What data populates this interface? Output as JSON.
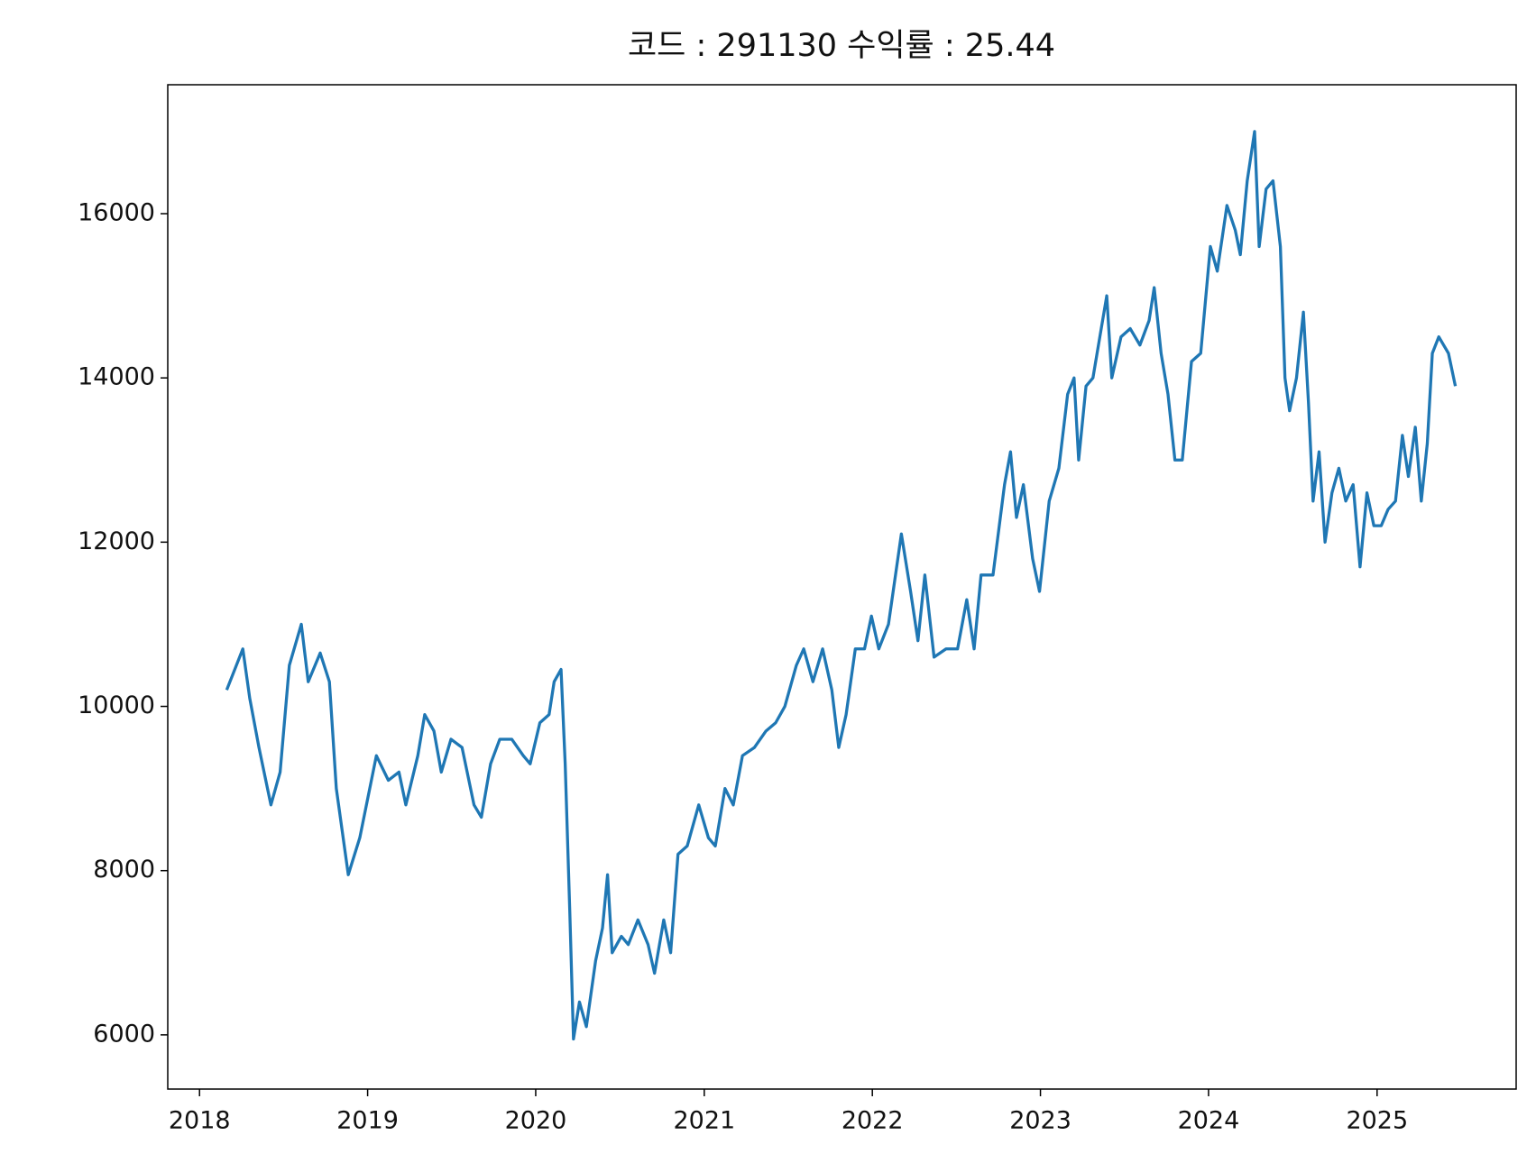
{
  "chart_data": {
    "type": "line",
    "title": "코드 : 291130 수익률 : 25.44",
    "color": "#1f77b4",
    "x": [
      "2018-03-01",
      "2018-04-05",
      "2018-04-20",
      "2018-05-10",
      "2018-06-05",
      "2018-06-25",
      "2018-07-15",
      "2018-08-10",
      "2018-08-25",
      "2018-09-20",
      "2018-10-10",
      "2018-10-25",
      "2018-11-20",
      "2018-12-15",
      "2019-01-20",
      "2019-02-15",
      "2019-03-10",
      "2019-03-25",
      "2019-04-20",
      "2019-05-05",
      "2019-05-25",
      "2019-06-10",
      "2019-07-01",
      "2019-07-25",
      "2019-08-20",
      "2019-09-05",
      "2019-09-25",
      "2019-10-15",
      "2019-11-10",
      "2019-12-05",
      "2019-12-20",
      "2020-01-10",
      "2020-01-30",
      "2020-02-10",
      "2020-02-25",
      "2020-03-05",
      "2020-03-15",
      "2020-03-23",
      "2020-04-05",
      "2020-04-20",
      "2020-05-10",
      "2020-05-25",
      "2020-06-05",
      "2020-06-15",
      "2020-07-05",
      "2020-07-20",
      "2020-08-10",
      "2020-09-01",
      "2020-09-15",
      "2020-10-05",
      "2020-10-20",
      "2020-11-05",
      "2020-11-25",
      "2020-12-20",
      "2021-01-10",
      "2021-01-25",
      "2021-02-15",
      "2021-03-05",
      "2021-03-25",
      "2021-04-20",
      "2021-05-15",
      "2021-06-05",
      "2021-06-25",
      "2021-07-20",
      "2021-08-05",
      "2021-08-25",
      "2021-09-15",
      "2021-10-05",
      "2021-10-20",
      "2021-11-05",
      "2021-11-25",
      "2021-12-15",
      "2021-12-30",
      "2022-01-15",
      "2022-02-05",
      "2022-03-05",
      "2022-03-25",
      "2022-04-10",
      "2022-04-25",
      "2022-05-15",
      "2022-06-10",
      "2022-07-05",
      "2022-07-25",
      "2022-08-10",
      "2022-08-25",
      "2022-09-20",
      "2022-10-15",
      "2022-10-28",
      "2022-11-10",
      "2022-11-25",
      "2022-12-15",
      "2022-12-30",
      "2023-01-20",
      "2023-02-10",
      "2023-03-01",
      "2023-03-15",
      "2023-03-25",
      "2023-04-10",
      "2023-04-25",
      "2023-05-10",
      "2023-05-25",
      "2023-06-05",
      "2023-06-25",
      "2023-07-15",
      "2023-08-05",
      "2023-08-25",
      "2023-09-05",
      "2023-09-20",
      "2023-10-05",
      "2023-10-20",
      "2023-11-05",
      "2023-11-25",
      "2023-12-15",
      "2024-01-05",
      "2024-01-20",
      "2024-02-10",
      "2024-02-28",
      "2024-03-10",
      "2024-03-25",
      "2024-04-10",
      "2024-04-20",
      "2024-05-05",
      "2024-05-20",
      "2024-06-05",
      "2024-06-15",
      "2024-06-25",
      "2024-07-10",
      "2024-07-25",
      "2024-08-05",
      "2024-08-15",
      "2024-08-28",
      "2024-09-10",
      "2024-09-25",
      "2024-10-10",
      "2024-10-25",
      "2024-11-10",
      "2024-11-25",
      "2024-12-10",
      "2024-12-25",
      "2025-01-10",
      "2025-01-25",
      "2025-02-10",
      "2025-02-25",
      "2025-03-10",
      "2025-03-25",
      "2025-04-07",
      "2025-04-20",
      "2025-05-01",
      "2025-05-15",
      "2025-06-05",
      "2025-06-20"
    ],
    "values": [
      10200,
      10700,
      10100,
      9500,
      8800,
      9200,
      10500,
      11000,
      10300,
      10650,
      10300,
      9000,
      7950,
      8400,
      9400,
      9100,
      9200,
      8800,
      9400,
      9900,
      9700,
      9200,
      9600,
      9500,
      8800,
      8650,
      9300,
      9600,
      9600,
      9400,
      9300,
      9800,
      9900,
      10300,
      10450,
      9300,
      7500,
      5950,
      6400,
      6100,
      6900,
      7300,
      7950,
      7000,
      7200,
      7100,
      7400,
      7100,
      6750,
      7400,
      7000,
      8200,
      8300,
      8800,
      8400,
      8300,
      9000,
      8800,
      9400,
      9500,
      9700,
      9800,
      10000,
      10500,
      10700,
      10300,
      10700,
      10200,
      9500,
      9900,
      10700,
      10700,
      11100,
      10700,
      11000,
      12100,
      11400,
      10800,
      11600,
      10600,
      10700,
      10700,
      11300,
      10700,
      11600,
      11600,
      12700,
      13100,
      12300,
      12700,
      11800,
      11400,
      12500,
      12900,
      13800,
      14000,
      13000,
      13900,
      14000,
      14500,
      15000,
      14000,
      14500,
      14600,
      14400,
      14700,
      15100,
      14300,
      13800,
      13000,
      13000,
      14200,
      14300,
      15600,
      15300,
      16100,
      15800,
      15500,
      16400,
      17000,
      15600,
      16300,
      16400,
      15600,
      14000,
      13600,
      14000,
      14800,
      13700,
      12500,
      13100,
      12000,
      12600,
      12900,
      12500,
      12700,
      11700,
      12600,
      12200,
      12200,
      12400,
      12500,
      13300,
      12800,
      13400,
      12500,
      13200,
      14300,
      14500,
      14300,
      13900
    ],
    "xlim": [
      "2017-10-24",
      "2025-10-30"
    ],
    "xticks": [
      {
        "value": "2018-01-01",
        "label": "2018"
      },
      {
        "value": "2019-01-01",
        "label": "2019"
      },
      {
        "value": "2020-01-01",
        "label": "2020"
      },
      {
        "value": "2021-01-01",
        "label": "2021"
      },
      {
        "value": "2022-01-01",
        "label": "2022"
      },
      {
        "value": "2023-01-01",
        "label": "2023"
      },
      {
        "value": "2024-01-01",
        "label": "2024"
      },
      {
        "value": "2025-01-01",
        "label": "2025"
      }
    ],
    "ylim": [
      5340,
      17570
    ],
    "yticks": [
      6000,
      8000,
      10000,
      12000,
      14000,
      16000
    ]
  }
}
